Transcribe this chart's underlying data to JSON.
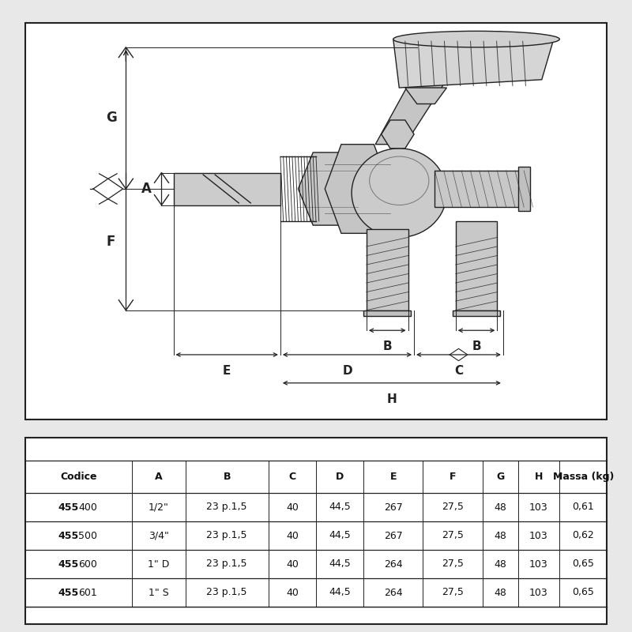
{
  "bg_color": "#e8e8e8",
  "diagram_bg": "#ffffff",
  "table_bg": "#ffffff",
  "border_color": "#222222",
  "line_color": "#222222",
  "gray_fill": "#d0d0d0",
  "gray_fill2": "#c0c0c0",
  "gray_light": "#e0e0e0",
  "table_headers": [
    "Codice",
    "A",
    "B",
    "C",
    "D",
    "E",
    "F",
    "G",
    "H",
    "Massa (kg)"
  ],
  "table_rows": [
    [
      "455400",
      "1/2\"",
      "23 p.1,5",
      "40",
      "44,5",
      "267",
      "27,5",
      "48",
      "103",
      "0,61"
    ],
    [
      "455500",
      "3/4\"",
      "23 p.1,5",
      "40",
      "44,5",
      "267",
      "27,5",
      "48",
      "103",
      "0,62"
    ],
    [
      "455600",
      "1\" D",
      "23 p.1,5",
      "40",
      "44,5",
      "264",
      "27,5",
      "48",
      "103",
      "0,65"
    ],
    [
      "455601",
      "1\" S",
      "23 p.1,5",
      "40",
      "44,5",
      "264",
      "27,5",
      "48",
      "103",
      "0,65"
    ]
  ]
}
